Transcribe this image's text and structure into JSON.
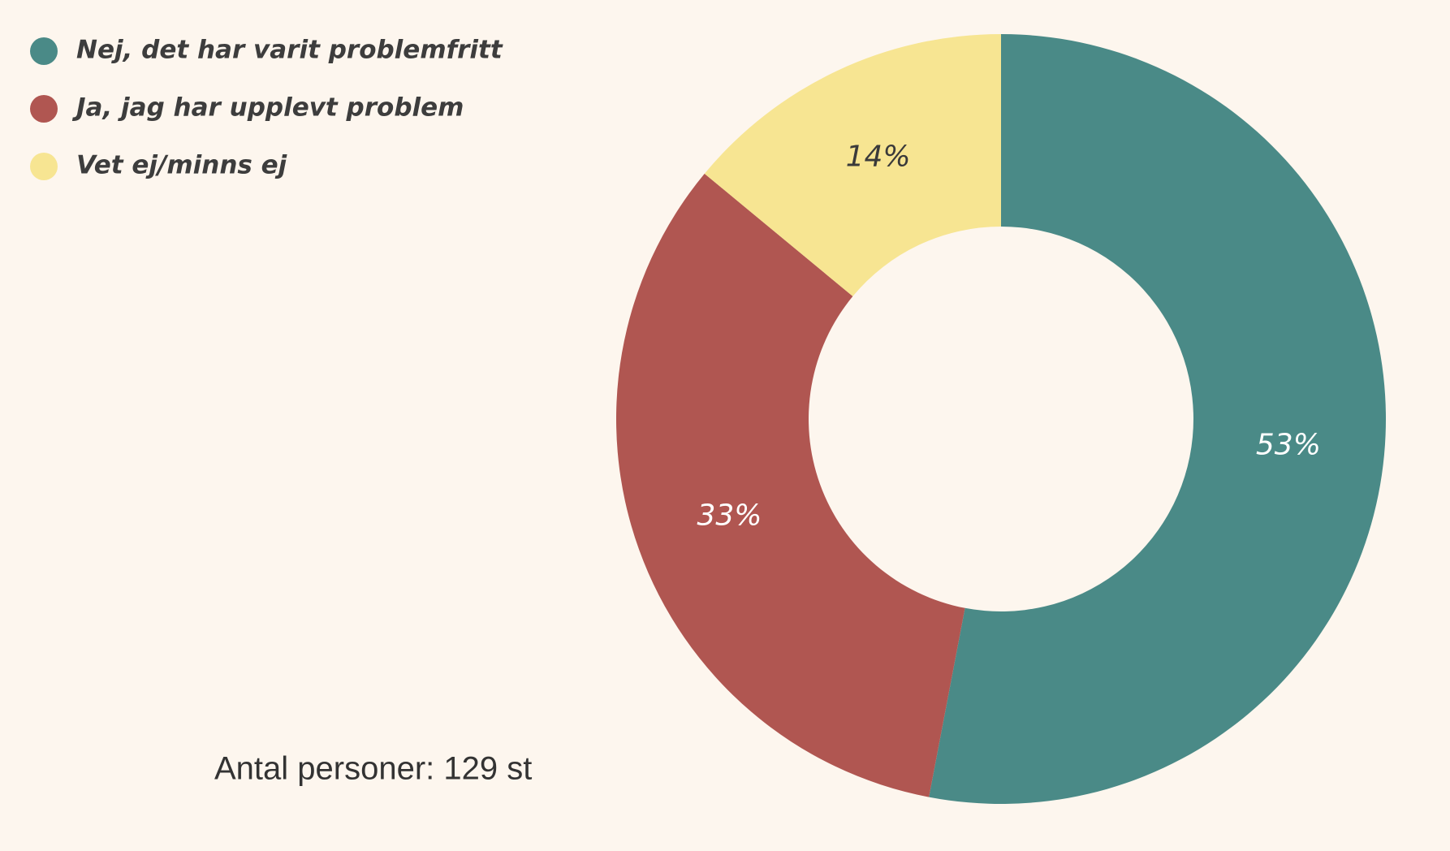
{
  "chart_data": {
    "type": "donut",
    "categories": [
      "Nej, det har varit problemfritt",
      "Ja, jag har upplevt problem",
      "Vet ej/minns ej"
    ],
    "values": [
      53,
      33,
      14
    ],
    "value_labels": [
      "53%",
      "33%",
      "14%"
    ],
    "colors": [
      "#4a8a87",
      "#b05651",
      "#f7e592"
    ],
    "label_colors": [
      "#ffffff",
      "#ffffff",
      "#3a3a3a"
    ],
    "note": "Antal personer: 129 st",
    "legend": "top-left"
  }
}
